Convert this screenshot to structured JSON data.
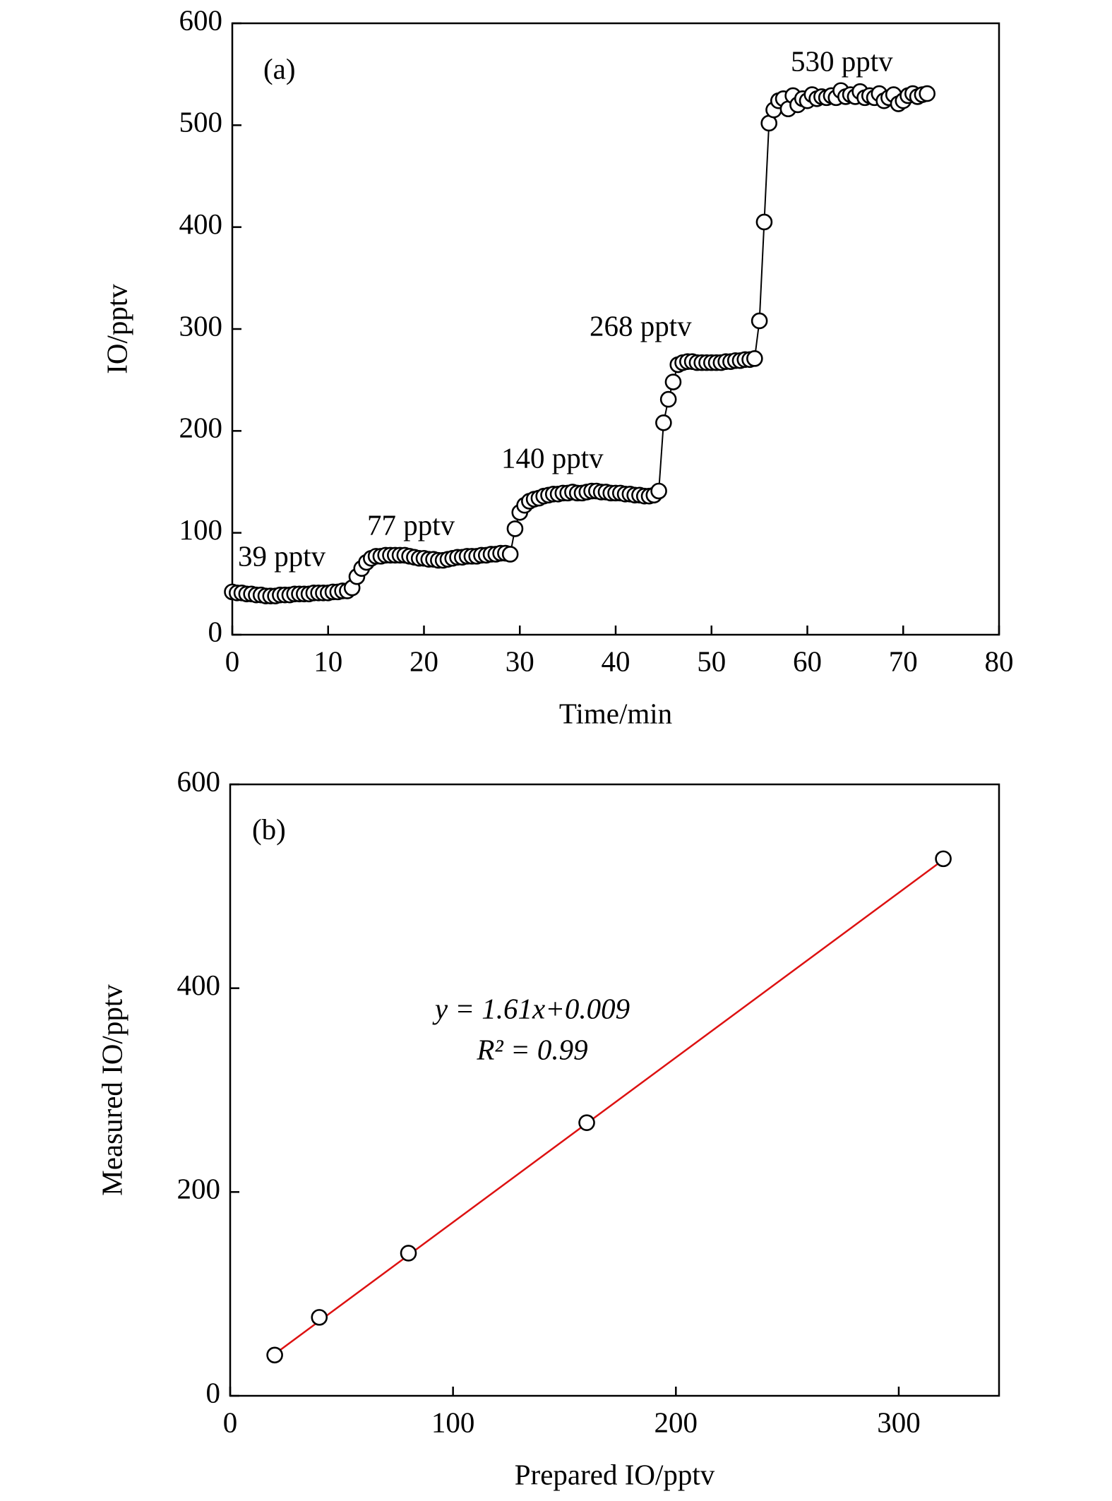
{
  "chart_data": [
    {
      "type": "line",
      "xlabel": "Time/min",
      "ylabel": "IO/pptv",
      "annotations": [
        "(a)",
        "39 pptv",
        "77 pptv",
        "140 pptv",
        "268 pptv",
        "530 pptv"
      ],
      "xlim": [
        0,
        80
      ],
      "xticks": [
        0,
        10,
        20,
        30,
        40,
        50,
        60,
        70,
        80
      ],
      "ylim": [
        0,
        600
      ],
      "yticks": [
        0,
        100,
        200,
        300,
        400,
        500,
        600
      ],
      "color": "#000000",
      "marker_fill": "#ffffff",
      "grid": false,
      "x": [
        0,
        0.5,
        1,
        1.5,
        2,
        2.5,
        3,
        3.5,
        4,
        4.5,
        5,
        5.5,
        6,
        6.5,
        7,
        7.5,
        8,
        8.5,
        9,
        9.5,
        10,
        10.5,
        11,
        11.5,
        12,
        12.5,
        13,
        13.5,
        14,
        14.5,
        15,
        15.5,
        16,
        16.5,
        17,
        17.5,
        18,
        18.5,
        19,
        19.5,
        20,
        20.5,
        21,
        21.5,
        22,
        22.5,
        23,
        23.5,
        24,
        24.5,
        25,
        25.5,
        26,
        26.5,
        27,
        27.5,
        28,
        28.5,
        29,
        29.5,
        30,
        30.5,
        31,
        31.5,
        32,
        32.5,
        33,
        33.5,
        34,
        34.5,
        35,
        35.5,
        36,
        36.5,
        37,
        37.5,
        38,
        38.5,
        39,
        39.5,
        40,
        40.5,
        41,
        41.5,
        42,
        42.5,
        43,
        43.5,
        44,
        44.5,
        45,
        45.5,
        46,
        46.5,
        47,
        47.5,
        48,
        48.5,
        49,
        49.5,
        50,
        50.5,
        51,
        51.5,
        52,
        52.5,
        53,
        53.5,
        54,
        54.5,
        55,
        55.5,
        56,
        56.5,
        57,
        57.5,
        58,
        58.5,
        59,
        59.5,
        60,
        60.5,
        61,
        61.5,
        62,
        62.5,
        63,
        63.5,
        64,
        64.5,
        65,
        65.5,
        66,
        66.5,
        67,
        67.5,
        68,
        68.5,
        69,
        69.5,
        70,
        70.5,
        71,
        71.5,
        72,
        72.5
      ],
      "values": [
        42,
        41,
        41,
        40,
        40,
        39,
        39,
        38,
        38,
        38,
        39,
        39,
        39,
        40,
        40,
        40,
        40,
        41,
        41,
        41,
        41,
        42,
        42,
        43,
        43,
        46,
        57,
        65,
        71,
        75,
        77,
        77,
        78,
        78,
        78,
        78,
        78,
        77,
        76,
        75,
        75,
        74,
        74,
        73,
        73,
        74,
        75,
        76,
        76,
        77,
        77,
        77,
        78,
        78,
        79,
        79,
        80,
        80,
        79,
        104,
        120,
        127,
        131,
        133,
        134,
        136,
        137,
        138,
        138,
        139,
        139,
        140,
        139,
        139,
        140,
        141,
        141,
        140,
        140,
        139,
        139,
        139,
        138,
        138,
        137,
        137,
        136,
        136,
        137,
        141,
        208,
        231,
        248,
        265,
        267,
        268,
        268,
        267,
        267,
        267,
        267,
        267,
        267,
        268,
        268,
        269,
        269,
        270,
        270,
        271,
        308,
        405,
        502,
        515,
        524,
        526,
        516,
        529,
        520,
        526,
        524,
        530,
        526,
        528,
        527,
        529,
        527,
        534,
        528,
        530,
        528,
        533,
        527,
        529,
        527,
        531,
        524,
        527,
        530,
        521,
        524,
        529,
        531,
        528,
        530,
        531
      ]
    },
    {
      "type": "scatter",
      "xlabel": "Prepared IO/pptv",
      "ylabel": "Measured IO/pptv",
      "annotations": [
        "(b)",
        "y = 1.61x+0.009",
        "R² = 0.99"
      ],
      "xlim": [
        0,
        345
      ],
      "xticks": [
        0,
        100,
        200,
        300
      ],
      "ylim": [
        0,
        600
      ],
      "yticks": [
        0,
        200,
        400,
        600
      ],
      "color": "#000000",
      "marker_fill": "#ffffff",
      "grid": false,
      "x": [
        20,
        40,
        80,
        160,
        320
      ],
      "values": [
        40,
        77,
        140,
        268,
        527
      ],
      "fit": {
        "color": "#dd1111",
        "x": [
          20,
          320
        ],
        "values": [
          41,
          526
        ]
      }
    }
  ]
}
